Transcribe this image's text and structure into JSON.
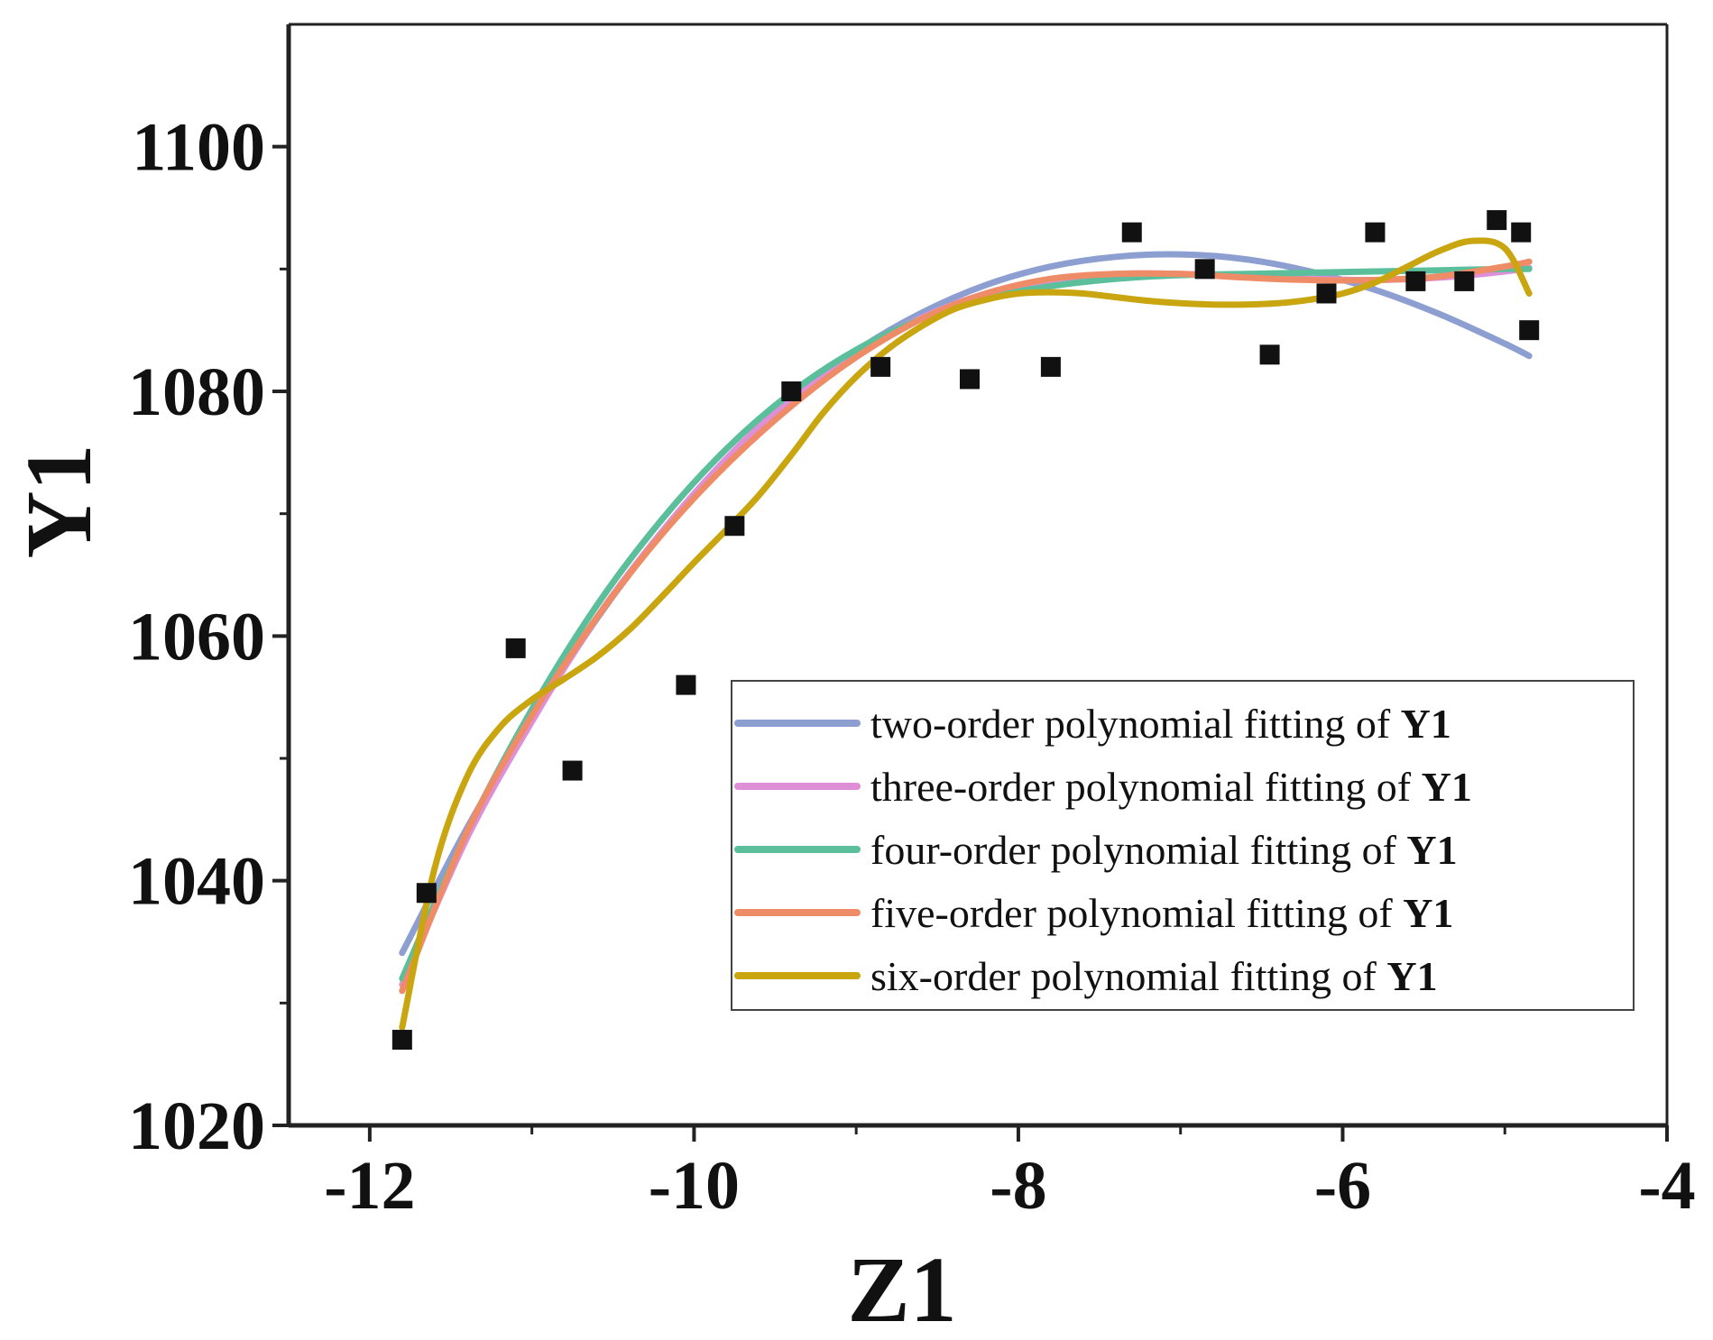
{
  "chart_data": {
    "type": "scatter",
    "title": "",
    "xlabel": "Z1",
    "ylabel": "Y1",
    "xlim": [
      -12.5,
      -4
    ],
    "ylim": [
      1020,
      1110
    ],
    "xticks": [
      -12,
      -10,
      -8,
      -6,
      -4
    ],
    "xtick_labels": [
      "-12",
      "-10",
      "-8",
      "-6",
      "-4"
    ],
    "yticks": [
      1020,
      1040,
      1060,
      1080,
      1100
    ],
    "ytick_labels": [
      "1020",
      "1040",
      "1060",
      "1080",
      "1100"
    ],
    "x_minor_ticks": [
      -11,
      -9,
      -7,
      -5
    ],
    "y_minor_ticks": [
      1030,
      1050,
      1070,
      1090
    ],
    "grid": false,
    "legend_position": "lower-right",
    "scatter": {
      "name": "Y1",
      "color": "#111111",
      "x": [
        -11.8,
        -11.65,
        -11.1,
        -10.75,
        -10.05,
        -9.75,
        -9.4,
        -8.85,
        -8.3,
        -7.8,
        -7.3,
        -6.85,
        -6.45,
        -6.1,
        -5.8,
        -5.55,
        -5.25,
        -5.05,
        -4.9,
        -4.85
      ],
      "y": [
        1027,
        1039,
        1059,
        1049,
        1056,
        1069,
        1080,
        1082,
        1081,
        1082,
        1093,
        1090,
        1083,
        1088,
        1093,
        1089,
        1089,
        1094,
        1093,
        1085
      ]
    },
    "series": [
      {
        "name": "two-order polynomial fitting of",
        "suffix": "Y1",
        "color": "#8d9fd1",
        "x": [
          -11.8,
          -11.4,
          -11.0,
          -10.6,
          -10.2,
          -9.8,
          -9.4,
          -9.0,
          -8.6,
          -8.2,
          -7.8,
          -7.4,
          -7.0,
          -6.6,
          -6.2,
          -5.8,
          -5.4,
          -5.0,
          -4.85
        ],
        "y": [
          1034.1,
          1044.3,
          1053.2,
          1061.4,
          1068.4,
          1074.3,
          1079.3,
          1083.3,
          1086.4,
          1088.7,
          1090.2,
          1091.0,
          1091.2,
          1090.8,
          1089.8,
          1088.3,
          1086.3,
          1083.9,
          1082.9
        ]
      },
      {
        "name": "three-order polynomial fitting of",
        "suffix": "Y1",
        "color": "#df8fd8",
        "x": [
          -11.8,
          -11.4,
          -11.0,
          -10.6,
          -10.2,
          -9.8,
          -9.4,
          -9.0,
          -8.6,
          -8.2,
          -7.8,
          -7.4,
          -7.0,
          -6.6,
          -6.2,
          -5.8,
          -5.4,
          -5.0,
          -4.85
        ],
        "y": [
          1031.5,
          1043.5,
          1053.0,
          1061.5,
          1068.5,
          1074.5,
          1079.4,
          1083.2,
          1086.0,
          1088.0,
          1089.1,
          1089.6,
          1089.6,
          1089.4,
          1089.2,
          1089.1,
          1089.3,
          1089.8,
          1090.1
        ]
      },
      {
        "name": "four-order polynomial fitting of",
        "suffix": "Y1",
        "color": "#5cbf9c",
        "x": [
          -11.8,
          -11.4,
          -11.0,
          -10.6,
          -10.2,
          -9.8,
          -9.4,
          -9.0,
          -8.6,
          -8.2,
          -7.8,
          -7.4,
          -7.0,
          -6.6,
          -6.2,
          -5.8,
          -5.4,
          -5.0,
          -4.85
        ],
        "y": [
          1032.0,
          1044.0,
          1054.0,
          1062.5,
          1069.5,
          1075.3,
          1079.9,
          1083.4,
          1085.9,
          1087.6,
          1088.6,
          1089.2,
          1089.5,
          1089.6,
          1089.7,
          1089.8,
          1089.9,
          1090.0,
          1090.0
        ]
      },
      {
        "name": "five-order polynomial fitting of",
        "suffix": "Y1",
        "color": "#ef8c68",
        "x": [
          -11.8,
          -11.4,
          -11.0,
          -10.6,
          -10.2,
          -9.8,
          -9.4,
          -9.0,
          -8.6,
          -8.2,
          -7.8,
          -7.4,
          -7.0,
          -6.6,
          -6.2,
          -5.8,
          -5.4,
          -5.0,
          -4.85
        ],
        "y": [
          1031.0,
          1044.0,
          1053.5,
          1061.5,
          1068.3,
          1074.0,
          1078.8,
          1082.8,
          1085.9,
          1088.0,
          1089.2,
          1089.6,
          1089.6,
          1089.3,
          1089.1,
          1089.1,
          1089.4,
          1090.2,
          1090.6
        ]
      },
      {
        "name": "six-order polynomial fitting of",
        "suffix": "Y1",
        "color": "#c9a50f",
        "x": [
          -11.8,
          -11.6,
          -11.4,
          -11.2,
          -11.0,
          -10.8,
          -10.6,
          -10.4,
          -10.2,
          -10.0,
          -9.8,
          -9.6,
          -9.4,
          -9.2,
          -9.0,
          -8.8,
          -8.6,
          -8.4,
          -8.2,
          -8.0,
          -7.8,
          -7.6,
          -7.4,
          -7.2,
          -7.0,
          -6.8,
          -6.6,
          -6.4,
          -6.2,
          -6.0,
          -5.8,
          -5.6,
          -5.4,
          -5.2,
          -5.0,
          -4.85
        ],
        "y": [
          1028.0,
          1041.0,
          1048.5,
          1052.5,
          1054.8,
          1056.5,
          1058.3,
          1060.5,
          1063.2,
          1066.0,
          1068.7,
          1071.5,
          1074.8,
          1078.3,
          1081.2,
          1083.5,
          1085.3,
          1086.7,
          1087.5,
          1088.0,
          1088.1,
          1088.0,
          1087.7,
          1087.4,
          1087.2,
          1087.1,
          1087.1,
          1087.2,
          1087.5,
          1088.0,
          1088.9,
          1090.2,
          1091.5,
          1092.3,
          1091.7,
          1088.0
        ]
      }
    ]
  }
}
